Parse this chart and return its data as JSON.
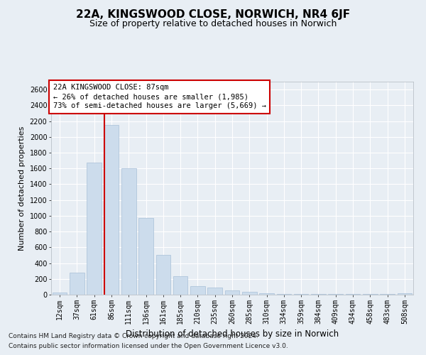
{
  "title": "22A, KINGSWOOD CLOSE, NORWICH, NR4 6JF",
  "subtitle": "Size of property relative to detached houses in Norwich",
  "xlabel": "Distribution of detached houses by size in Norwich",
  "ylabel": "Number of detached properties",
  "categories": [
    "12sqm",
    "37sqm",
    "61sqm",
    "86sqm",
    "111sqm",
    "136sqm",
    "161sqm",
    "185sqm",
    "210sqm",
    "235sqm",
    "260sqm",
    "285sqm",
    "310sqm",
    "334sqm",
    "359sqm",
    "384sqm",
    "409sqm",
    "434sqm",
    "458sqm",
    "483sqm",
    "508sqm"
  ],
  "values": [
    25,
    275,
    1675,
    2150,
    1600,
    975,
    500,
    235,
    110,
    90,
    50,
    40,
    20,
    12,
    8,
    6,
    5,
    5,
    5,
    5,
    15
  ],
  "bar_color": "#ccdcec",
  "bar_edge_color": "#a8c0d8",
  "vline_x_index": 3,
  "vline_color": "#cc0000",
  "ylim": [
    0,
    2700
  ],
  "yticks": [
    0,
    200,
    400,
    600,
    800,
    1000,
    1200,
    1400,
    1600,
    1800,
    2000,
    2200,
    2400,
    2600
  ],
  "annotation_text": "22A KINGSWOOD CLOSE: 87sqm\n← 26% of detached houses are smaller (1,985)\n73% of semi-detached houses are larger (5,669) →",
  "annotation_box_color": "#ffffff",
  "annotation_box_edge_color": "#cc0000",
  "footnote1": "Contains HM Land Registry data © Crown copyright and database right 2024.",
  "footnote2": "Contains public sector information licensed under the Open Government Licence v3.0.",
  "bg_color": "#e8eef4",
  "plot_bg_color": "#e8eef4",
  "grid_color": "#ffffff",
  "title_fontsize": 11,
  "subtitle_fontsize": 9,
  "xlabel_fontsize": 8.5,
  "ylabel_fontsize": 8,
  "tick_fontsize": 7,
  "annotation_fontsize": 7.5,
  "footnote_fontsize": 6.5
}
